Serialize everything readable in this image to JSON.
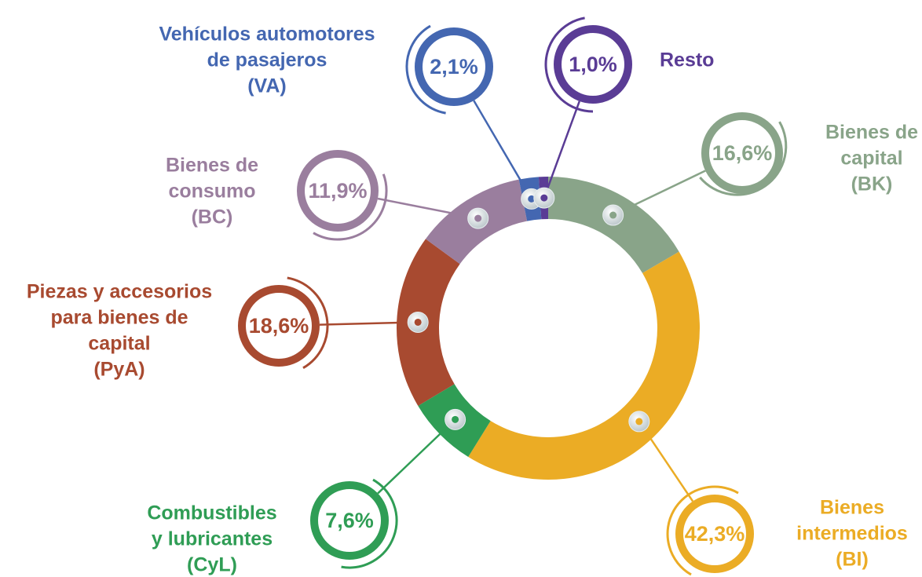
{
  "chart_data": {
    "type": "donut",
    "categories": [
      [
        "Bienes de",
        "capital",
        "(BK)"
      ],
      [
        "Bienes",
        "intermedios",
        "(BI)"
      ],
      [
        "Combustibles",
        "y lubricantes",
        "(CyL)"
      ],
      [
        "Piezas y accesorios",
        "para bienes de",
        "capital",
        "(PyA)"
      ],
      [
        "Bienes de",
        "consumo",
        "(BC)"
      ],
      [
        "Vehículos automotores",
        "de pasajeros",
        "(VA)"
      ],
      [
        "Resto"
      ]
    ],
    "values": [
      16.6,
      42.3,
      7.6,
      18.6,
      11.9,
      2.1,
      1.0
    ],
    "value_labels": [
      "16,6%",
      "42,3%",
      "7,6%",
      "18,6%",
      "11,9%",
      "2,1%",
      "1,0%"
    ],
    "colors": [
      "#89a489",
      "#ebac25",
      "#2f9d55",
      "#a84a30",
      "#9a7e9e",
      "#4467b1",
      "#5a3c95"
    ]
  }
}
